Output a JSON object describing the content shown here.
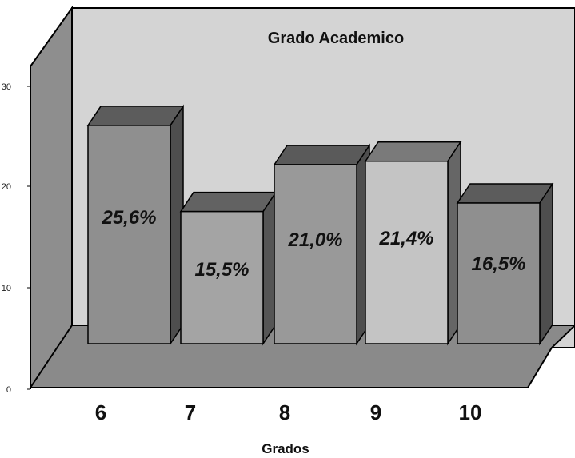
{
  "chart_data": {
    "type": "bar",
    "title": "Grado Academico",
    "xlabel": "Grados",
    "ylabel": "",
    "categories": [
      "6",
      "7",
      "8",
      "9",
      "10"
    ],
    "values": [
      25.6,
      15.5,
      21.0,
      21.4,
      16.5
    ],
    "value_labels": [
      "25,6%",
      "15,5%",
      "21,0%",
      "21,4%",
      "16,5%"
    ],
    "ylim": [
      0,
      30
    ],
    "yticks": [
      0,
      10,
      20,
      30
    ],
    "grid": false,
    "legend": "none",
    "colors": {
      "back_wall": "#d4d4d4",
      "side_wall": "#8e8e8e",
      "floor": "#8a8a8a",
      "bars": [
        "#8f8f8f",
        "#a4a4a4",
        "#999999",
        "#c4c4c4",
        "#8f8f8f"
      ],
      "bar_tops": [
        "#5c5c5c",
        "#626262",
        "#5a5a5a",
        "#7a7a7a",
        "#5c5c5c"
      ],
      "bar_sides": [
        "#4e4e4e",
        "#555555",
        "#4e4e4e",
        "#666666",
        "#4e4e4e"
      ]
    }
  }
}
